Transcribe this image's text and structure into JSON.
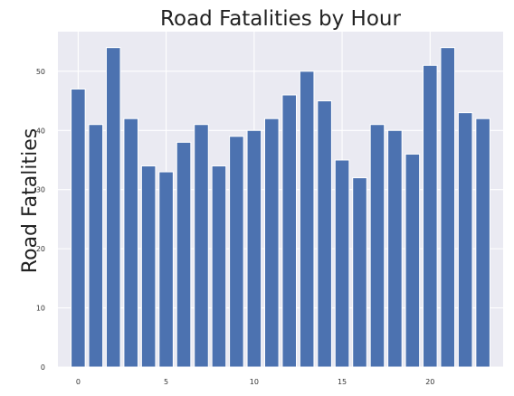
{
  "chart_data": {
    "type": "bar",
    "title": "Road Fatalities by Hour",
    "xlabel": "",
    "ylabel": "Road Fatalities",
    "x": [
      0,
      1,
      2,
      3,
      4,
      5,
      6,
      7,
      8,
      9,
      10,
      11,
      12,
      13,
      14,
      15,
      16,
      17,
      18,
      19,
      20,
      21,
      22,
      23
    ],
    "values": [
      47,
      41,
      54,
      42,
      34,
      33,
      38,
      41,
      34,
      39,
      40,
      42,
      46,
      50,
      45,
      35,
      32,
      41,
      40,
      36,
      51,
      54,
      43,
      42
    ],
    "xticks": [
      0,
      5,
      10,
      15,
      20
    ],
    "yticks": [
      0,
      10,
      20,
      30,
      40,
      50
    ],
    "xlim": [
      -1.15,
      24.15
    ],
    "ylim": [
      0,
      56.7
    ],
    "grid": true,
    "colors": {
      "bar": "#4c72b0",
      "plot_background": "#eaeaf2",
      "grid": "#ffffff"
    }
  }
}
